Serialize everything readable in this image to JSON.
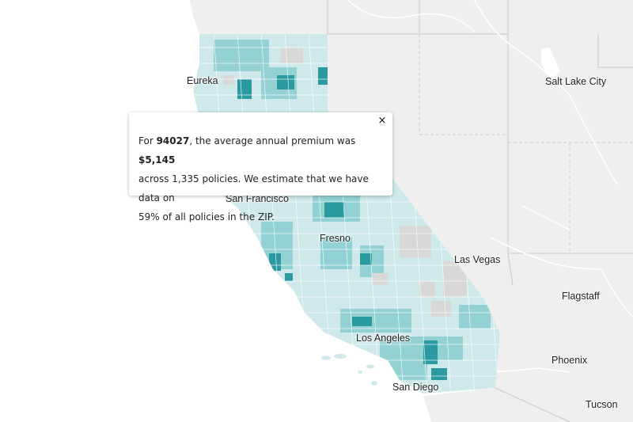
{
  "popup": {
    "intro": "For ",
    "zip": "94027",
    "mid": ", the average annual premium was ",
    "premium": "$5,145",
    "line2": "across 1,335 policies. We estimate that we have data on",
    "line3": "59% of all policies in the ZIP.",
    "close_glyph": "×"
  },
  "cities": {
    "eureka": "Eureka",
    "salt_lake_city": "Salt Lake City",
    "san_francisco": "San Francisco",
    "fresno": "Fresno",
    "las_vegas": "Las Vegas",
    "flagstaff": "Flagstaff",
    "los_angeles": "Los Angeles",
    "phoenix": "Phoenix",
    "san_diego": "San Diego",
    "tucson": "Tucson"
  },
  "colors": {
    "land": "#f0f0f0",
    "water": "#ffffff",
    "no_data": "#d8d8d8",
    "choropleth_light": "#cfe9ea",
    "choropleth_mid": "#8ccfd1",
    "choropleth_dark": "#2a9aa0"
  }
}
